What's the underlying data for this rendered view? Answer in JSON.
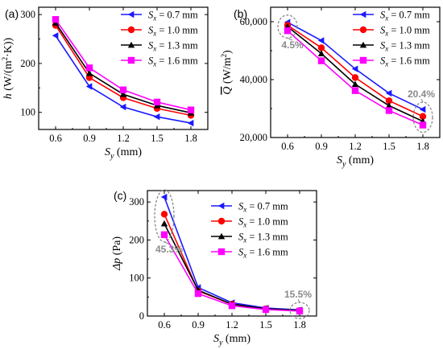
{
  "chart_data": [
    {
      "type": "line",
      "panel_label": "(a)",
      "x": [
        0.6,
        0.9,
        1.2,
        1.5,
        1.8
      ],
      "xlim": [
        0.45,
        1.95
      ],
      "xticks": [
        "0.6",
        "0.9",
        "1.2",
        "1.5",
        "1.8"
      ],
      "xlabel": {
        "var": "S",
        "sub": "y",
        "unit": " (mm)"
      },
      "ylim": [
        65,
        315
      ],
      "yticks": [
        100,
        200,
        300
      ],
      "ytick_labels": [
        "100",
        "200",
        "300"
      ],
      "ylabel": {
        "var": "h",
        "unit": " (W/(m",
        "sup": "2",
        "tail": "·K))"
      },
      "legend_position": "top-right",
      "series": [
        {
          "name": "Sx = 0.7 mm",
          "label_var": "S",
          "label_sub": "x",
          "label_rest": " = 0.7 mm",
          "color": "#1a1aff",
          "marker": "triangle-left",
          "values": [
            257,
            153,
            111,
            91,
            78
          ]
        },
        {
          "name": "Sx = 1.0 mm",
          "label_var": "S",
          "label_sub": "x",
          "label_rest": " = 1.0 mm",
          "color": "#ff0000",
          "marker": "circle",
          "values": [
            278,
            171,
            130,
            108,
            94
          ]
        },
        {
          "name": "Sx = 1.3 mm",
          "label_var": "S",
          "label_sub": "x",
          "label_rest": " = 1.3 mm",
          "color": "#000000",
          "marker": "triangle-up",
          "values": [
            283,
            180,
            137,
            114,
            99
          ]
        },
        {
          "name": "Sx = 1.6 mm",
          "label_var": "S",
          "label_sub": "x",
          "label_rest": " = 1.6 mm",
          "color": "#ff00ff",
          "marker": "square",
          "values": [
            290,
            191,
            146,
            121,
            105
          ]
        }
      ],
      "annotations": []
    },
    {
      "type": "line",
      "panel_label": "(b)",
      "x": [
        0.6,
        0.9,
        1.2,
        1.5,
        1.8
      ],
      "xlim": [
        0.45,
        1.95
      ],
      "xticks": [
        "0.6",
        "0.9",
        "1.2",
        "1.5",
        "1.8"
      ],
      "xlabel": {
        "var": "S",
        "sub": "y",
        "unit": " (mm)"
      },
      "ylim": [
        20000,
        65000
      ],
      "yticks": [
        20000,
        40000,
        60000
      ],
      "ytick_labels": [
        "20,000",
        "40,000",
        "60,000"
      ],
      "ylabel": {
        "var": "Q",
        "overline": true,
        "unit": " (W/m",
        "sup": "2",
        "tail": ")"
      },
      "legend_position": "top-right",
      "series": [
        {
          "name": "Sx = 0.7 mm",
          "label_var": "S",
          "label_sub": "x",
          "label_rest": " = 0.7 mm",
          "color": "#1a1aff",
          "marker": "triangle-left",
          "values": [
            59800,
            53500,
            43700,
            35300,
            29700
          ]
        },
        {
          "name": "Sx = 1.0 mm",
          "label_var": "S",
          "label_sub": "x",
          "label_rest": " = 1.0 mm",
          "color": "#ff0000",
          "marker": "circle",
          "values": [
            58800,
            51000,
            40700,
            32700,
            27300
          ]
        },
        {
          "name": "Sx = 1.3 mm",
          "label_var": "S",
          "label_sub": "x",
          "label_rest": " = 1.3 mm",
          "color": "#000000",
          "marker": "triangle-up",
          "values": [
            58300,
            49000,
            38400,
            31000,
            25600
          ]
        },
        {
          "name": "Sx = 1.6 mm",
          "label_var": "S",
          "label_sub": "x",
          "label_rest": " = 1.6 mm",
          "color": "#ff00ff",
          "marker": "square",
          "values": [
            56900,
            46500,
            36200,
            29300,
            24300
          ]
        }
      ],
      "annotations": [
        {
          "text": "4.5%",
          "at_x": 0.6,
          "range": [
            56900,
            59800
          ]
        },
        {
          "text": "20.4%",
          "at_x": 1.8,
          "range": [
            24300,
            29700
          ]
        }
      ]
    },
    {
      "type": "line",
      "panel_label": "(c)",
      "x": [
        0.6,
        0.9,
        1.2,
        1.5,
        1.8
      ],
      "xlim": [
        0.45,
        1.95
      ],
      "xticks": [
        "0.6",
        "0.9",
        "1.2",
        "1.5",
        "1.8"
      ],
      "xlabel": {
        "var": "S",
        "sub": "y",
        "unit": " (mm)"
      },
      "ylim": [
        0,
        330
      ],
      "yticks": [
        0,
        100,
        200,
        300
      ],
      "ytick_labels": [
        "0",
        "100",
        "200",
        "300"
      ],
      "ylabel": {
        "var": "Δp",
        "unit": " (Pa)"
      },
      "legend_position": "top-right",
      "series": [
        {
          "name": "Sx = 0.7 mm",
          "label_var": "S",
          "label_sub": "x",
          "label_rest": " = 0.7 mm",
          "color": "#1a1aff",
          "marker": "triangle-left",
          "values": [
            313,
            75,
            35,
            21,
            16
          ]
        },
        {
          "name": "Sx = 1.0 mm",
          "label_var": "S",
          "label_sub": "x",
          "label_rest": " = 1.0 mm",
          "color": "#ff0000",
          "marker": "circle",
          "values": [
            268,
            66,
            31,
            19,
            14
          ]
        },
        {
          "name": "Sx = 1.3 mm",
          "label_var": "S",
          "label_sub": "x",
          "label_rest": " = 1.3 mm",
          "color": "#000000",
          "marker": "triangle-up",
          "values": [
            243,
            68,
            31,
            19,
            15
          ]
        },
        {
          "name": "Sx = 1.6 mm",
          "label_var": "S",
          "label_sub": "x",
          "label_rest": " = 1.6 mm",
          "color": "#ff00ff",
          "marker": "square",
          "values": [
            214,
            59,
            27,
            17,
            13
          ]
        }
      ],
      "annotations": [
        {
          "text": "45.3%",
          "at_x": 0.6,
          "range": [
            214,
            313
          ]
        },
        {
          "text": "15.5%",
          "at_x": 1.8,
          "range": [
            13,
            16
          ]
        }
      ]
    }
  ]
}
